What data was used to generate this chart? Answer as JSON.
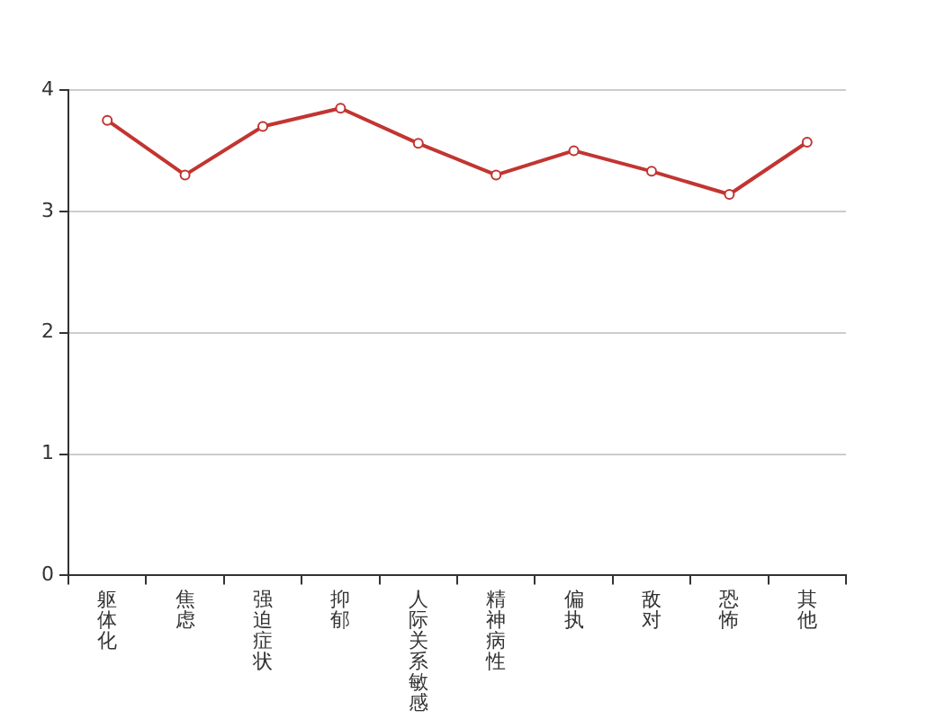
{
  "chart_data": {
    "type": "line",
    "categories": [
      "躯体化",
      "焦虑",
      "强迫症状",
      "抑郁",
      "人际关系敏感",
      "精神病性",
      "偏执",
      "敌对",
      "恐怖",
      "其他"
    ],
    "series": [
      {
        "color": "#c23531",
        "values": [
          3.75,
          3.3,
          3.7,
          3.85,
          3.56,
          3.3,
          3.5,
          3.33,
          3.14,
          3.57
        ]
      }
    ],
    "ylim": [
      0,
      4
    ],
    "yticks": [
      0,
      1,
      2,
      3,
      4
    ],
    "grid": "y",
    "legend": false,
    "marker": "circle",
    "line_style": "solid"
  }
}
